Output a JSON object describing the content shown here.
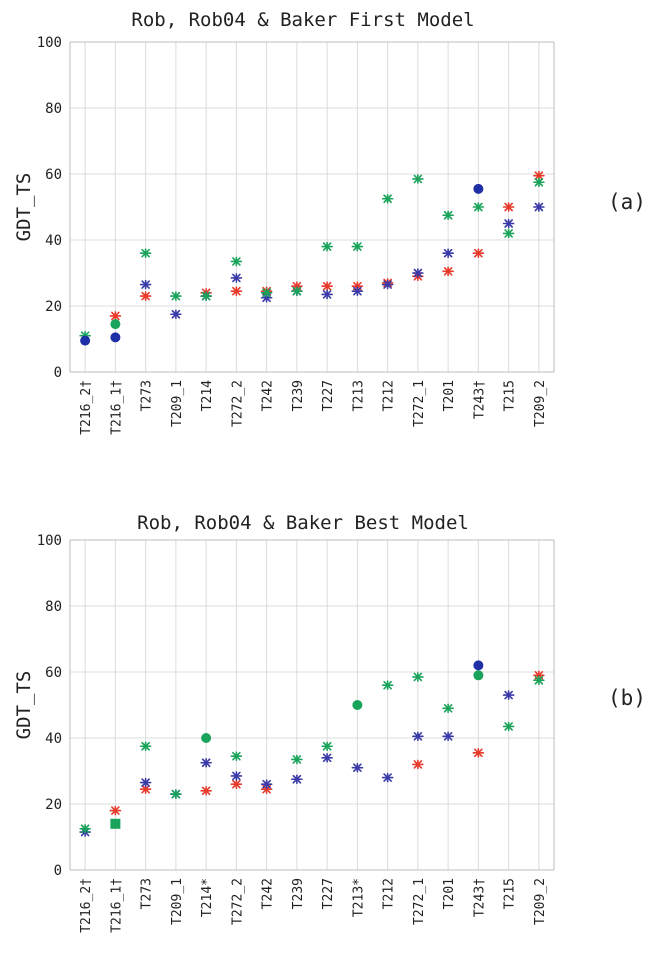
{
  "chart_data": [
    {
      "type": "scatter",
      "title": "Rob, Rob04 & Baker First Model",
      "ylabel": "GDT_TS",
      "xlabel": "",
      "panel_label": "(a)",
      "ylim": [
        0,
        100
      ],
      "yticks": [
        0,
        20,
        40,
        60,
        80,
        100
      ],
      "grid": true,
      "categories": [
        "T216_2†",
        "T216_1†",
        "T273",
        "T209_1",
        "T214",
        "T272_2",
        "T242",
        "T239",
        "T227",
        "T213",
        "T212",
        "T272_1",
        "T201",
        "T243†",
        "T215",
        "T209_2"
      ],
      "series": [
        {
          "color": "#e8392a",
          "marker": "asterisk",
          "values": [
            null,
            17,
            23,
            null,
            24,
            24.5,
            24.5,
            26,
            26,
            26,
            27,
            29,
            30.5,
            36,
            50,
            59.5
          ]
        },
        {
          "color": "#3a3aa8",
          "marker": "asterisk",
          "values": [
            null,
            null,
            26.5,
            17.5,
            23,
            28.5,
            22.5,
            24.5,
            23.5,
            24.5,
            26.5,
            30,
            36,
            null,
            45,
            50
          ]
        },
        {
          "color": "#1aa35a",
          "marker": "asterisk",
          "values": [
            11,
            null,
            36,
            23,
            23,
            33.5,
            24,
            24.5,
            38,
            38,
            52.5,
            58.5,
            47.5,
            50,
            42,
            57.5
          ]
        },
        {
          "color": "#1f2fa6",
          "marker": "dot",
          "values": [
            9.5,
            10.5,
            null,
            null,
            null,
            null,
            null,
            null,
            null,
            null,
            null,
            null,
            null,
            55.5,
            null,
            null
          ]
        },
        {
          "color": "#1aa35a",
          "marker": "dot",
          "values": [
            null,
            14.5,
            null,
            null,
            null,
            null,
            null,
            null,
            null,
            null,
            null,
            null,
            null,
            null,
            null,
            null
          ]
        }
      ]
    },
    {
      "type": "scatter",
      "title": "Rob, Rob04 & Baker Best Model",
      "ylabel": "GDT_TS",
      "xlabel": "",
      "panel_label": "(b)",
      "ylim": [
        0,
        100
      ],
      "yticks": [
        0,
        20,
        40,
        60,
        80,
        100
      ],
      "grid": true,
      "categories": [
        "T216_2†",
        "T216_1†",
        "T273",
        "T209_1",
        "T214*",
        "T272_2",
        "T242",
        "T239",
        "T227",
        "T213*",
        "T212",
        "T272_1",
        "T201",
        "T243†",
        "T215",
        "T209_2"
      ],
      "series": [
        {
          "color": "#e8392a",
          "marker": "asterisk",
          "values": [
            null,
            18,
            24.5,
            null,
            24,
            26,
            24.5,
            null,
            null,
            null,
            null,
            32,
            null,
            35.5,
            null,
            59
          ]
        },
        {
          "color": "#3a3aa8",
          "marker": "asterisk",
          "values": [
            11.5,
            null,
            26.5,
            23,
            32.5,
            28.5,
            26,
            27.5,
            34,
            31,
            28,
            40.5,
            40.5,
            null,
            53,
            null
          ]
        },
        {
          "color": "#1aa35a",
          "marker": "asterisk",
          "values": [
            12.5,
            null,
            37.5,
            23,
            null,
            34.5,
            null,
            33.5,
            37.5,
            null,
            56,
            58.5,
            49,
            null,
            43.5,
            57.5
          ]
        },
        {
          "color": "#1f2fa6",
          "marker": "dot",
          "values": [
            null,
            null,
            null,
            null,
            null,
            null,
            null,
            null,
            null,
            null,
            null,
            null,
            null,
            62,
            null,
            null
          ]
        },
        {
          "color": "#1aa35a",
          "marker": "dot",
          "values": [
            null,
            null,
            null,
            null,
            40,
            null,
            null,
            null,
            null,
            50,
            null,
            null,
            null,
            59,
            null,
            null
          ]
        },
        {
          "color": "#1aa35a",
          "marker": "square",
          "values": [
            null,
            14,
            null,
            null,
            null,
            null,
            null,
            null,
            null,
            null,
            null,
            null,
            null,
            null,
            null,
            null
          ]
        }
      ]
    }
  ]
}
